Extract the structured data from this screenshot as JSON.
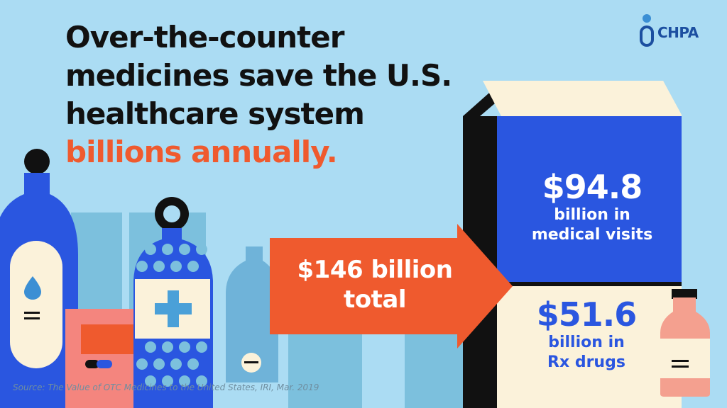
{
  "headline": {
    "line1": "Over-the-counter",
    "line2": "medicines save the U.S.",
    "line3": "healthcare system",
    "accent": "billions annually."
  },
  "logo": {
    "text": "CHPA",
    "icon": "person-pill-icon"
  },
  "arrow": {
    "line1": "$146 billion",
    "line2": "total"
  },
  "box": {
    "top": {
      "value": "$94.8",
      "line1": "billion in",
      "line2": "medical visits"
    },
    "bottom": {
      "value": "$51.6",
      "line1": "billion in",
      "line2": "Rx drugs"
    }
  },
  "source": "Source: The Value of OTC Medicines to the United States, IRI, Mar. 2019",
  "colors": {
    "background": "#abdcf3",
    "headline": "#111111",
    "accent": "#ef5a2e",
    "box_blue": "#2a56e0",
    "box_cream": "#fbf2da",
    "logo_blue": "#1c4fa0"
  },
  "icons": [
    "water-drop-icon",
    "medical-cross-icon",
    "pill-capsule-icon",
    "pill-tablet-icon"
  ]
}
